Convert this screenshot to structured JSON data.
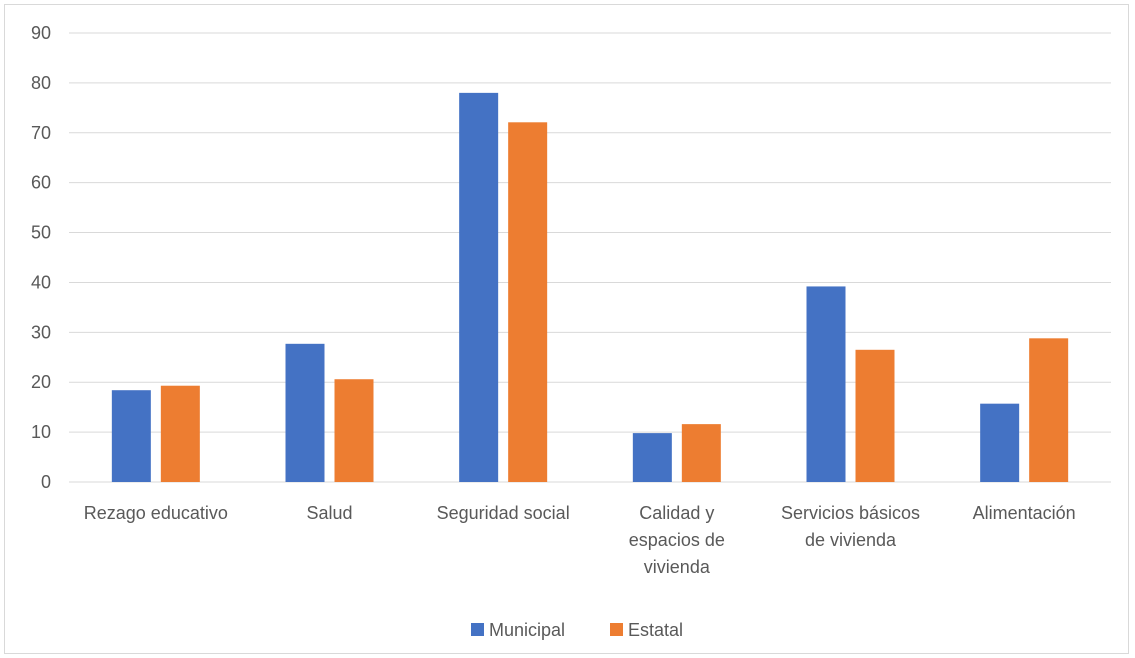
{
  "chart_data": {
    "type": "bar",
    "categories": [
      "Rezago educativo",
      "Salud",
      "Seguridad social",
      "Calidad y espacios de vivienda",
      "Servicios básicos de vivienda",
      "Alimentación"
    ],
    "category_label_lines": [
      [
        "Rezago educativo"
      ],
      [
        "Salud"
      ],
      [
        "Seguridad social"
      ],
      [
        "Calidad y",
        "espacios de",
        "vivienda"
      ],
      [
        "Servicios básicos",
        "de vivienda"
      ],
      [
        "Alimentación"
      ]
    ],
    "series": [
      {
        "name": "Municipal",
        "color": "#4472c4",
        "values": [
          18.4,
          27.7,
          78.0,
          9.8,
          39.2,
          15.7
        ]
      },
      {
        "name": "Estatal",
        "color": "#ed7d31",
        "values": [
          19.3,
          20.6,
          72.1,
          11.6,
          26.5,
          28.8
        ]
      }
    ],
    "ylim": [
      0,
      90
    ],
    "yticks": [
      0,
      10,
      20,
      30,
      40,
      50,
      60,
      70,
      80,
      90
    ],
    "title": "",
    "xlabel": "",
    "ylabel": "",
    "grid": true,
    "legend_position": "bottom"
  }
}
